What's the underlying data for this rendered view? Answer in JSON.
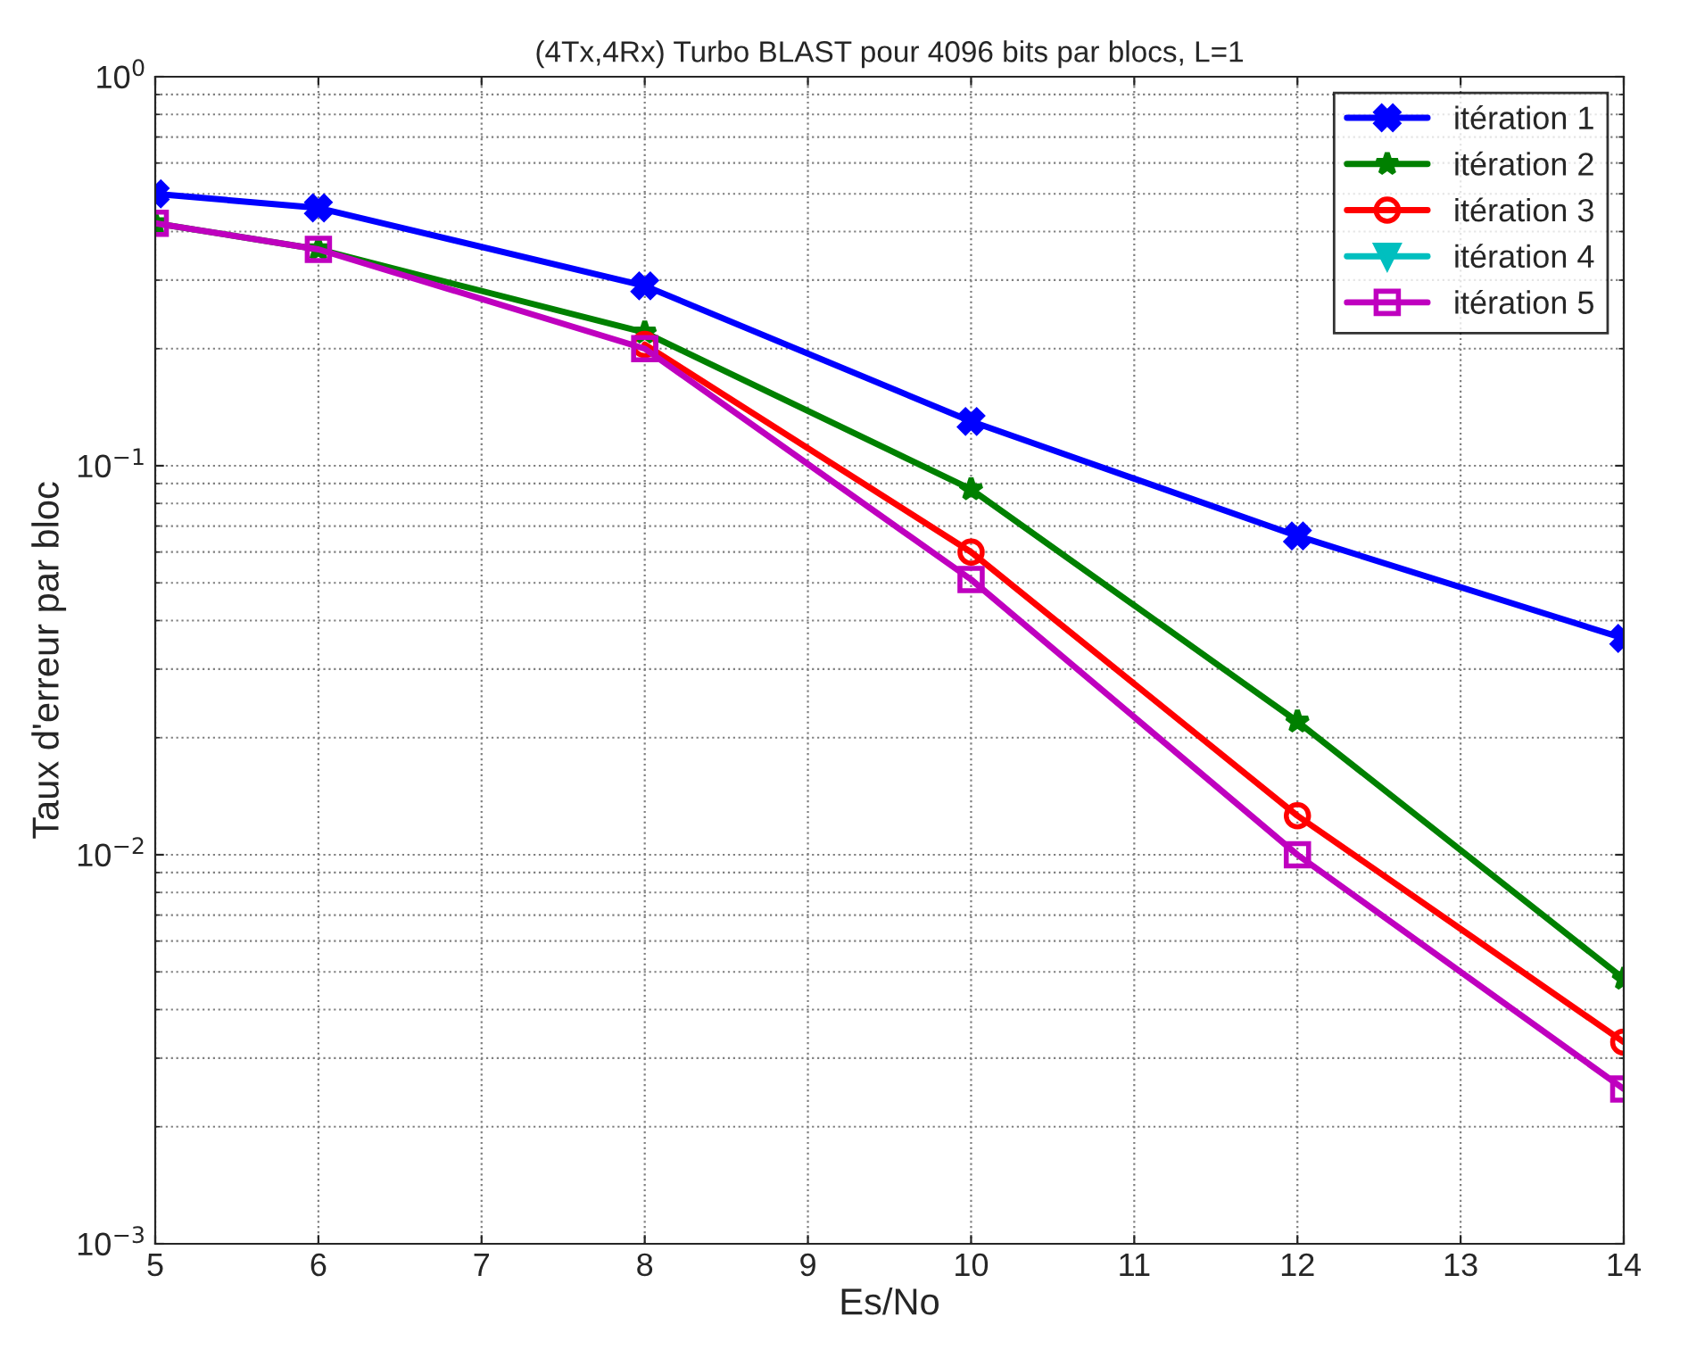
{
  "chart_data": {
    "type": "line",
    "title": "(4Tx,4Rx) Turbo BLAST pour 4096 bits par blocs, L=1",
    "xlabel": "Es/No",
    "ylabel": "Taux d'erreur par bloc",
    "x": [
      5,
      6,
      8,
      10,
      12,
      14
    ],
    "series": [
      {
        "name": "itération 1",
        "color": "#0000ff",
        "marker": "cross",
        "values": [
          0.5,
          0.46,
          0.29,
          0.13,
          0.066,
          0.036
        ]
      },
      {
        "name": "itération 2",
        "color": "#008000",
        "marker": "star",
        "values": [
          0.42,
          0.36,
          0.22,
          0.087,
          0.022,
          0.0048
        ]
      },
      {
        "name": "itération 3",
        "color": "#ff0000",
        "marker": "circle",
        "values": [
          null,
          null,
          0.205,
          0.06,
          0.0126,
          0.0033
        ]
      },
      {
        "name": "itération 4",
        "color": "#00bfbf",
        "marker": "triangle",
        "values": [
          null,
          null,
          null,
          null,
          null,
          null
        ]
      },
      {
        "name": "itération 5",
        "color": "#bf00bf",
        "marker": "square",
        "values": [
          0.42,
          0.36,
          0.2,
          0.051,
          0.01,
          0.0025
        ]
      }
    ],
    "log": "y",
    "xlim": [
      5,
      14
    ],
    "xticks": [
      5,
      6,
      7,
      8,
      9,
      10,
      11,
      12,
      13,
      14
    ],
    "ylim": [
      0.001,
      1
    ],
    "yticks": [
      {
        "value": 0.001,
        "label": "10$^{−3}$"
      },
      {
        "value": 0.01,
        "label": "10$^{−2}$"
      },
      {
        "value": 0.1,
        "label": "10$^{−1}$"
      },
      {
        "value": 1,
        "label": "10$^{0}$"
      }
    ],
    "grid": true,
    "legend": "top right",
    "line_style": "solid"
  }
}
